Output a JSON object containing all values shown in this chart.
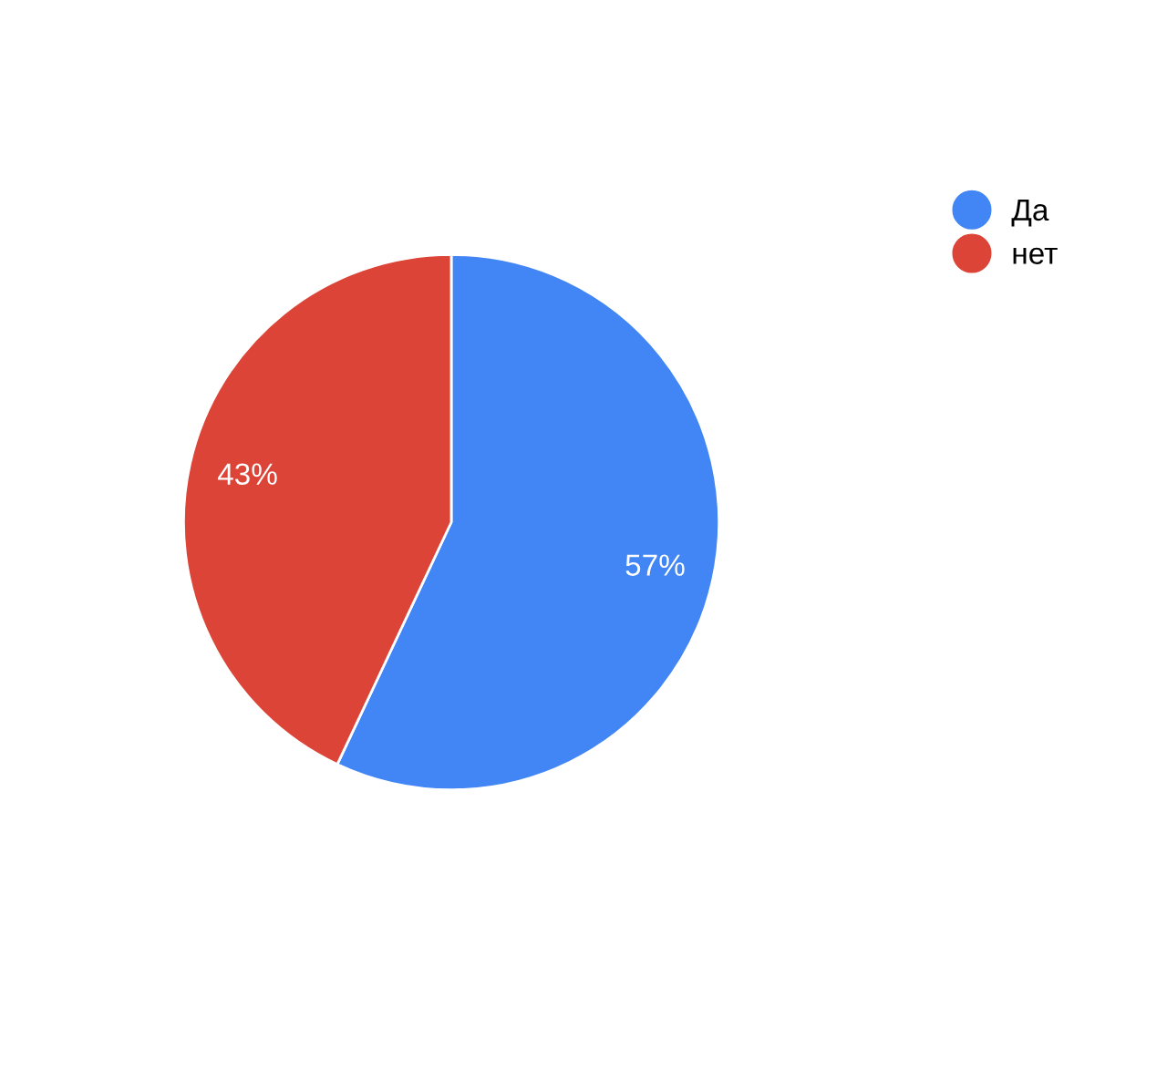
{
  "chart_data": {
    "type": "pie",
    "categories": [
      "Да",
      "нет"
    ],
    "values": [
      57,
      43
    ],
    "colors": [
      "#4285f4",
      "#db4437"
    ],
    "value_labels": [
      "57%",
      "43%"
    ],
    "legend": "top right"
  }
}
